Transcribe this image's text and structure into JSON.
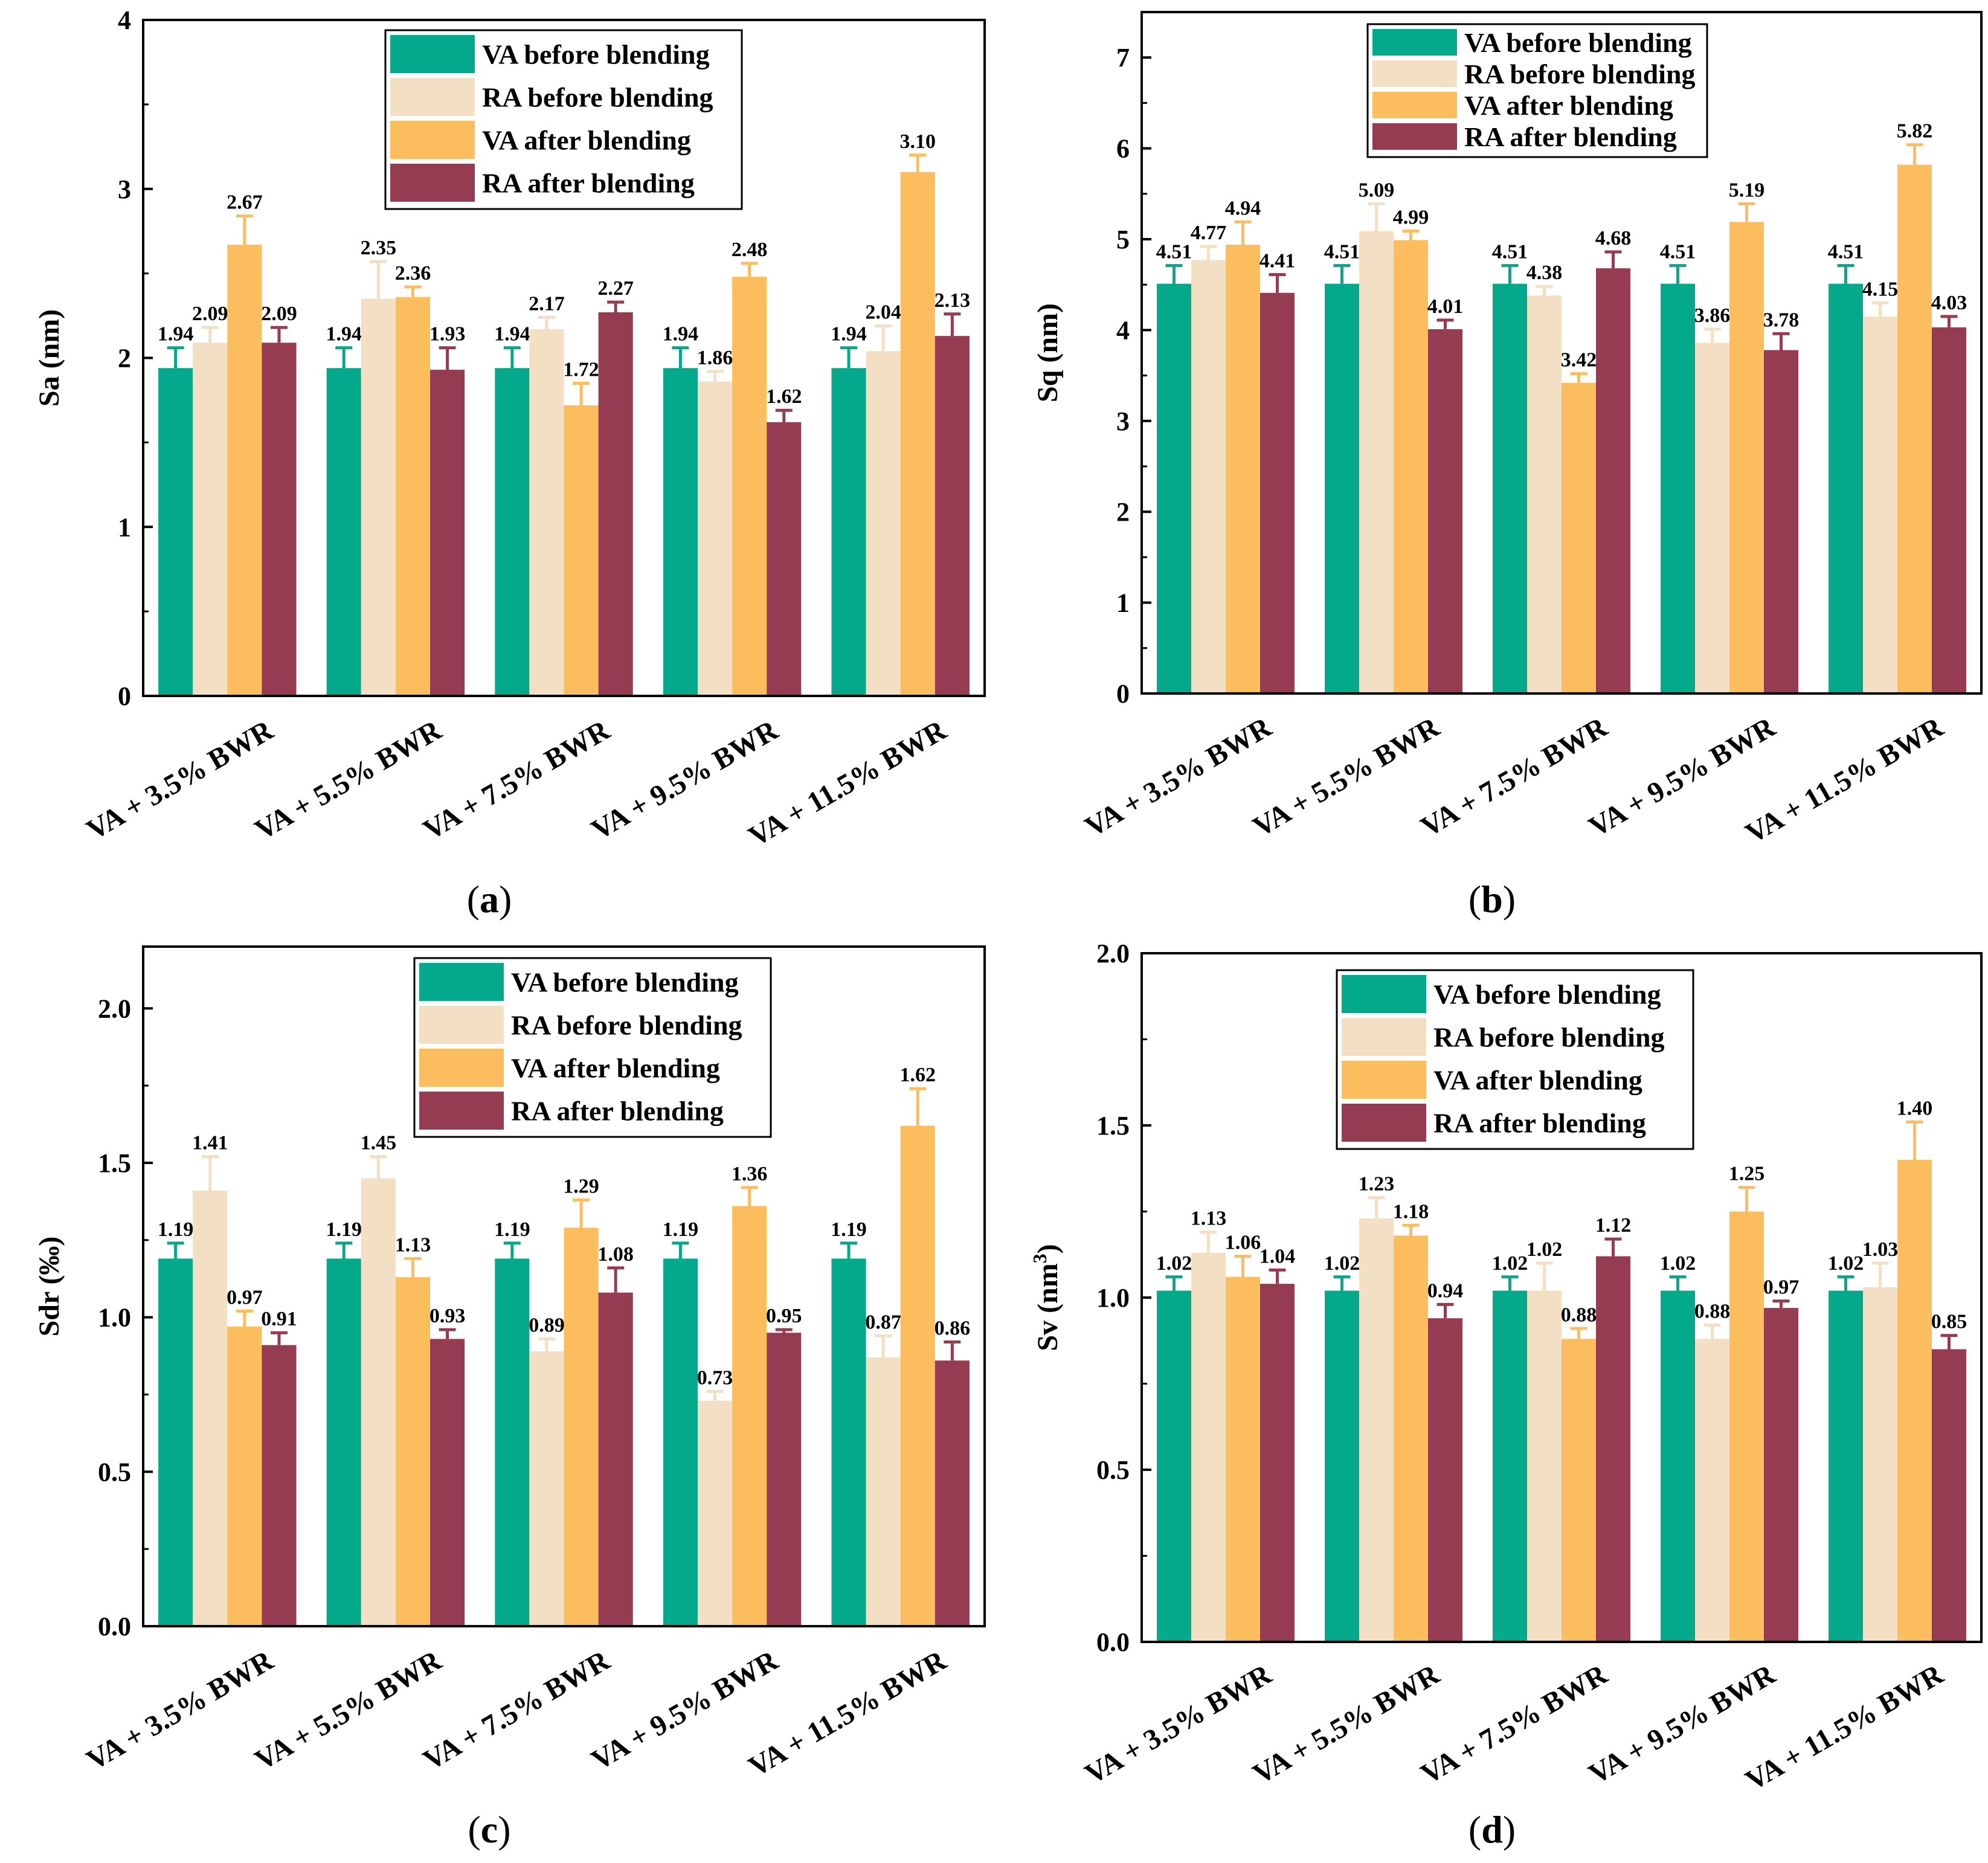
{
  "colors": {
    "VA before blending": "#04a88a",
    "RA before blending": "#f3dfc3",
    "VA after blending": "#fbbd5d",
    "RA after blending": "#963c52"
  },
  "chart_data": [
    {
      "type": "bar",
      "panel": "(a)",
      "panel_letter": "a",
      "ylabel": "Sa (nm)",
      "ylim": [
        0,
        4
      ],
      "yticks": [
        0,
        1,
        2,
        3,
        4
      ],
      "ytick_labels": [
        "0",
        "1",
        "2",
        "3",
        "4"
      ],
      "categories": [
        "VA + 3.5% BWR",
        "VA + 5.5% BWR",
        "VA + 7.5% BWR",
        "VA + 9.5% BWR",
        "VA + 11.5% BWR"
      ],
      "legend_position": "top-center",
      "series": [
        {
          "name": "VA before blending",
          "values": [
            1.94,
            1.94,
            1.94,
            1.94,
            1.94
          ],
          "labels": [
            "1.94",
            "1.94",
            "1.94",
            "1.94",
            "1.94"
          ],
          "errors": [
            0.12,
            0.12,
            0.12,
            0.12,
            0.12
          ]
        },
        {
          "name": "RA before blending",
          "values": [
            2.09,
            2.35,
            2.17,
            1.86,
            2.04
          ],
          "labels": [
            "2.09",
            "2.35",
            "2.17",
            "1.86",
            "2.04"
          ],
          "errors": [
            0.09,
            0.22,
            0.07,
            0.06,
            0.15
          ]
        },
        {
          "name": "VA after blending",
          "values": [
            2.67,
            2.36,
            1.72,
            2.48,
            3.1
          ],
          "labels": [
            "2.67",
            "2.36",
            "1.72",
            "2.48",
            "3.10"
          ],
          "errors": [
            0.17,
            0.06,
            0.13,
            0.08,
            0.1
          ]
        },
        {
          "name": "RA after blending",
          "values": [
            2.09,
            1.93,
            2.27,
            1.62,
            2.13
          ],
          "labels": [
            "2.09",
            "1.93",
            "2.27",
            "1.62",
            "2.13"
          ],
          "errors": [
            0.09,
            0.13,
            0.06,
            0.07,
            0.13
          ]
        }
      ]
    },
    {
      "type": "bar",
      "panel": "(b)",
      "panel_letter": "b",
      "ylabel": "Sq (nm)",
      "ylim": [
        0,
        7.5
      ],
      "yticks": [
        0,
        1,
        2,
        3,
        4,
        5,
        6,
        7
      ],
      "ytick_labels": [
        "0",
        "1",
        "2",
        "3",
        "4",
        "5",
        "6",
        "7"
      ],
      "categories": [
        "VA + 3.5% BWR",
        "VA + 5.5% BWR",
        "VA + 7.5% BWR",
        "VA + 9.5% BWR",
        "VA + 11.5% BWR"
      ],
      "legend_position": "top-center",
      "series": [
        {
          "name": "VA before blending",
          "values": [
            4.51,
            4.51,
            4.51,
            4.51,
            4.51
          ],
          "labels": [
            "4.51",
            "4.51",
            "4.51",
            "4.51",
            "4.51"
          ],
          "errors": [
            0.2,
            0.2,
            0.2,
            0.2,
            0.2
          ]
        },
        {
          "name": "RA before blending",
          "values": [
            4.77,
            5.09,
            4.38,
            3.86,
            4.15
          ],
          "labels": [
            "4.77",
            "5.09",
            "4.38",
            "3.86",
            "4.15"
          ],
          "errors": [
            0.15,
            0.3,
            0.1,
            0.15,
            0.15
          ]
        },
        {
          "name": "VA after blending",
          "values": [
            4.94,
            4.99,
            3.42,
            5.19,
            5.82
          ],
          "labels": [
            "4.94",
            "4.99",
            "3.42",
            "5.19",
            "5.82"
          ],
          "errors": [
            0.25,
            0.1,
            0.1,
            0.2,
            0.22
          ]
        },
        {
          "name": "RA after blending",
          "values": [
            4.41,
            4.01,
            4.68,
            3.78,
            4.03
          ],
          "labels": [
            "4.41",
            "4.01",
            "4.68",
            "3.78",
            "4.03"
          ],
          "errors": [
            0.2,
            0.1,
            0.18,
            0.18,
            0.12
          ]
        }
      ]
    },
    {
      "type": "bar",
      "panel": "(c)",
      "panel_letter": "c",
      "ylabel": "Sdr (‰)",
      "ylim": [
        0,
        2.2
      ],
      "yticks": [
        0,
        0.5,
        1.0,
        1.5,
        2.0
      ],
      "ytick_labels": [
        "0.0",
        "0.5",
        "1.0",
        "1.5",
        "2.0"
      ],
      "categories": [
        "VA + 3.5% BWR",
        "VA + 5.5% BWR",
        "VA + 7.5% BWR",
        "VA + 9.5% BWR",
        "VA + 11.5% BWR"
      ],
      "legend_position": "top-right",
      "series": [
        {
          "name": "VA before blending",
          "values": [
            1.19,
            1.19,
            1.19,
            1.19,
            1.19
          ],
          "labels": [
            "1.19",
            "1.19",
            "1.19",
            "1.19",
            "1.19"
          ],
          "errors": [
            0.05,
            0.05,
            0.05,
            0.05,
            0.05
          ]
        },
        {
          "name": "RA before blending",
          "values": [
            1.41,
            1.45,
            0.89,
            0.73,
            0.87
          ],
          "labels": [
            "1.41",
            "1.45",
            "0.89",
            "0.73",
            "0.87"
          ],
          "errors": [
            0.11,
            0.07,
            0.04,
            0.03,
            0.07
          ]
        },
        {
          "name": "VA after blending",
          "values": [
            0.97,
            1.13,
            1.29,
            1.36,
            1.62
          ],
          "labels": [
            "0.97",
            "1.13",
            "1.29",
            "1.36",
            "1.62"
          ],
          "errors": [
            0.05,
            0.06,
            0.09,
            0.06,
            0.12
          ]
        },
        {
          "name": "RA after blending",
          "values": [
            0.91,
            0.93,
            1.08,
            0.95,
            0.86
          ],
          "labels": [
            "0.91",
            "0.93",
            "1.08",
            "0.95",
            "0.86"
          ],
          "errors": [
            0.04,
            0.03,
            0.08,
            0.01,
            0.06
          ]
        }
      ]
    },
    {
      "type": "bar",
      "panel": "(d)",
      "panel_letter": "d",
      "ylabel": "Sv (nm³)",
      "ylabel_main": "Sv (nm",
      "ylabel_sup": "3",
      "ylabel_end": ")",
      "ylim": [
        0,
        2.0
      ],
      "yticks": [
        0,
        0.5,
        1.0,
        1.5,
        2.0
      ],
      "ytick_labels": [
        "0.0",
        "0.5",
        "1.0",
        "1.5",
        "2.0"
      ],
      "categories": [
        "VA + 3.5% BWR",
        "VA + 5.5% BWR",
        "VA + 7.5% BWR",
        "VA + 9.5% BWR",
        "VA + 11.5% BWR"
      ],
      "legend_position": "top-right",
      "series": [
        {
          "name": "VA before blending",
          "values": [
            1.02,
            1.02,
            1.02,
            1.02,
            1.02
          ],
          "labels": [
            "1.02",
            "1.02",
            "1.02",
            "1.02",
            "1.02"
          ],
          "errors": [
            0.04,
            0.04,
            0.04,
            0.04,
            0.04
          ]
        },
        {
          "name": "RA before blending",
          "values": [
            1.13,
            1.23,
            1.02,
            0.88,
            1.03
          ],
          "labels": [
            "1.13",
            "1.23",
            "1.02",
            "0.88",
            "1.03"
          ],
          "errors": [
            0.06,
            0.06,
            0.08,
            0.04,
            0.07
          ]
        },
        {
          "name": "VA after blending",
          "values": [
            1.06,
            1.18,
            0.88,
            1.25,
            1.4
          ],
          "labels": [
            "1.06",
            "1.18",
            "0.88",
            "1.25",
            "1.40"
          ],
          "errors": [
            0.06,
            0.03,
            0.03,
            0.07,
            0.11
          ]
        },
        {
          "name": "RA after blending",
          "values": [
            1.04,
            0.94,
            1.12,
            0.97,
            0.85
          ],
          "labels": [
            "1.04",
            "0.94",
            "1.12",
            "0.97",
            "0.85"
          ],
          "errors": [
            0.04,
            0.04,
            0.05,
            0.02,
            0.04
          ]
        }
      ]
    }
  ]
}
